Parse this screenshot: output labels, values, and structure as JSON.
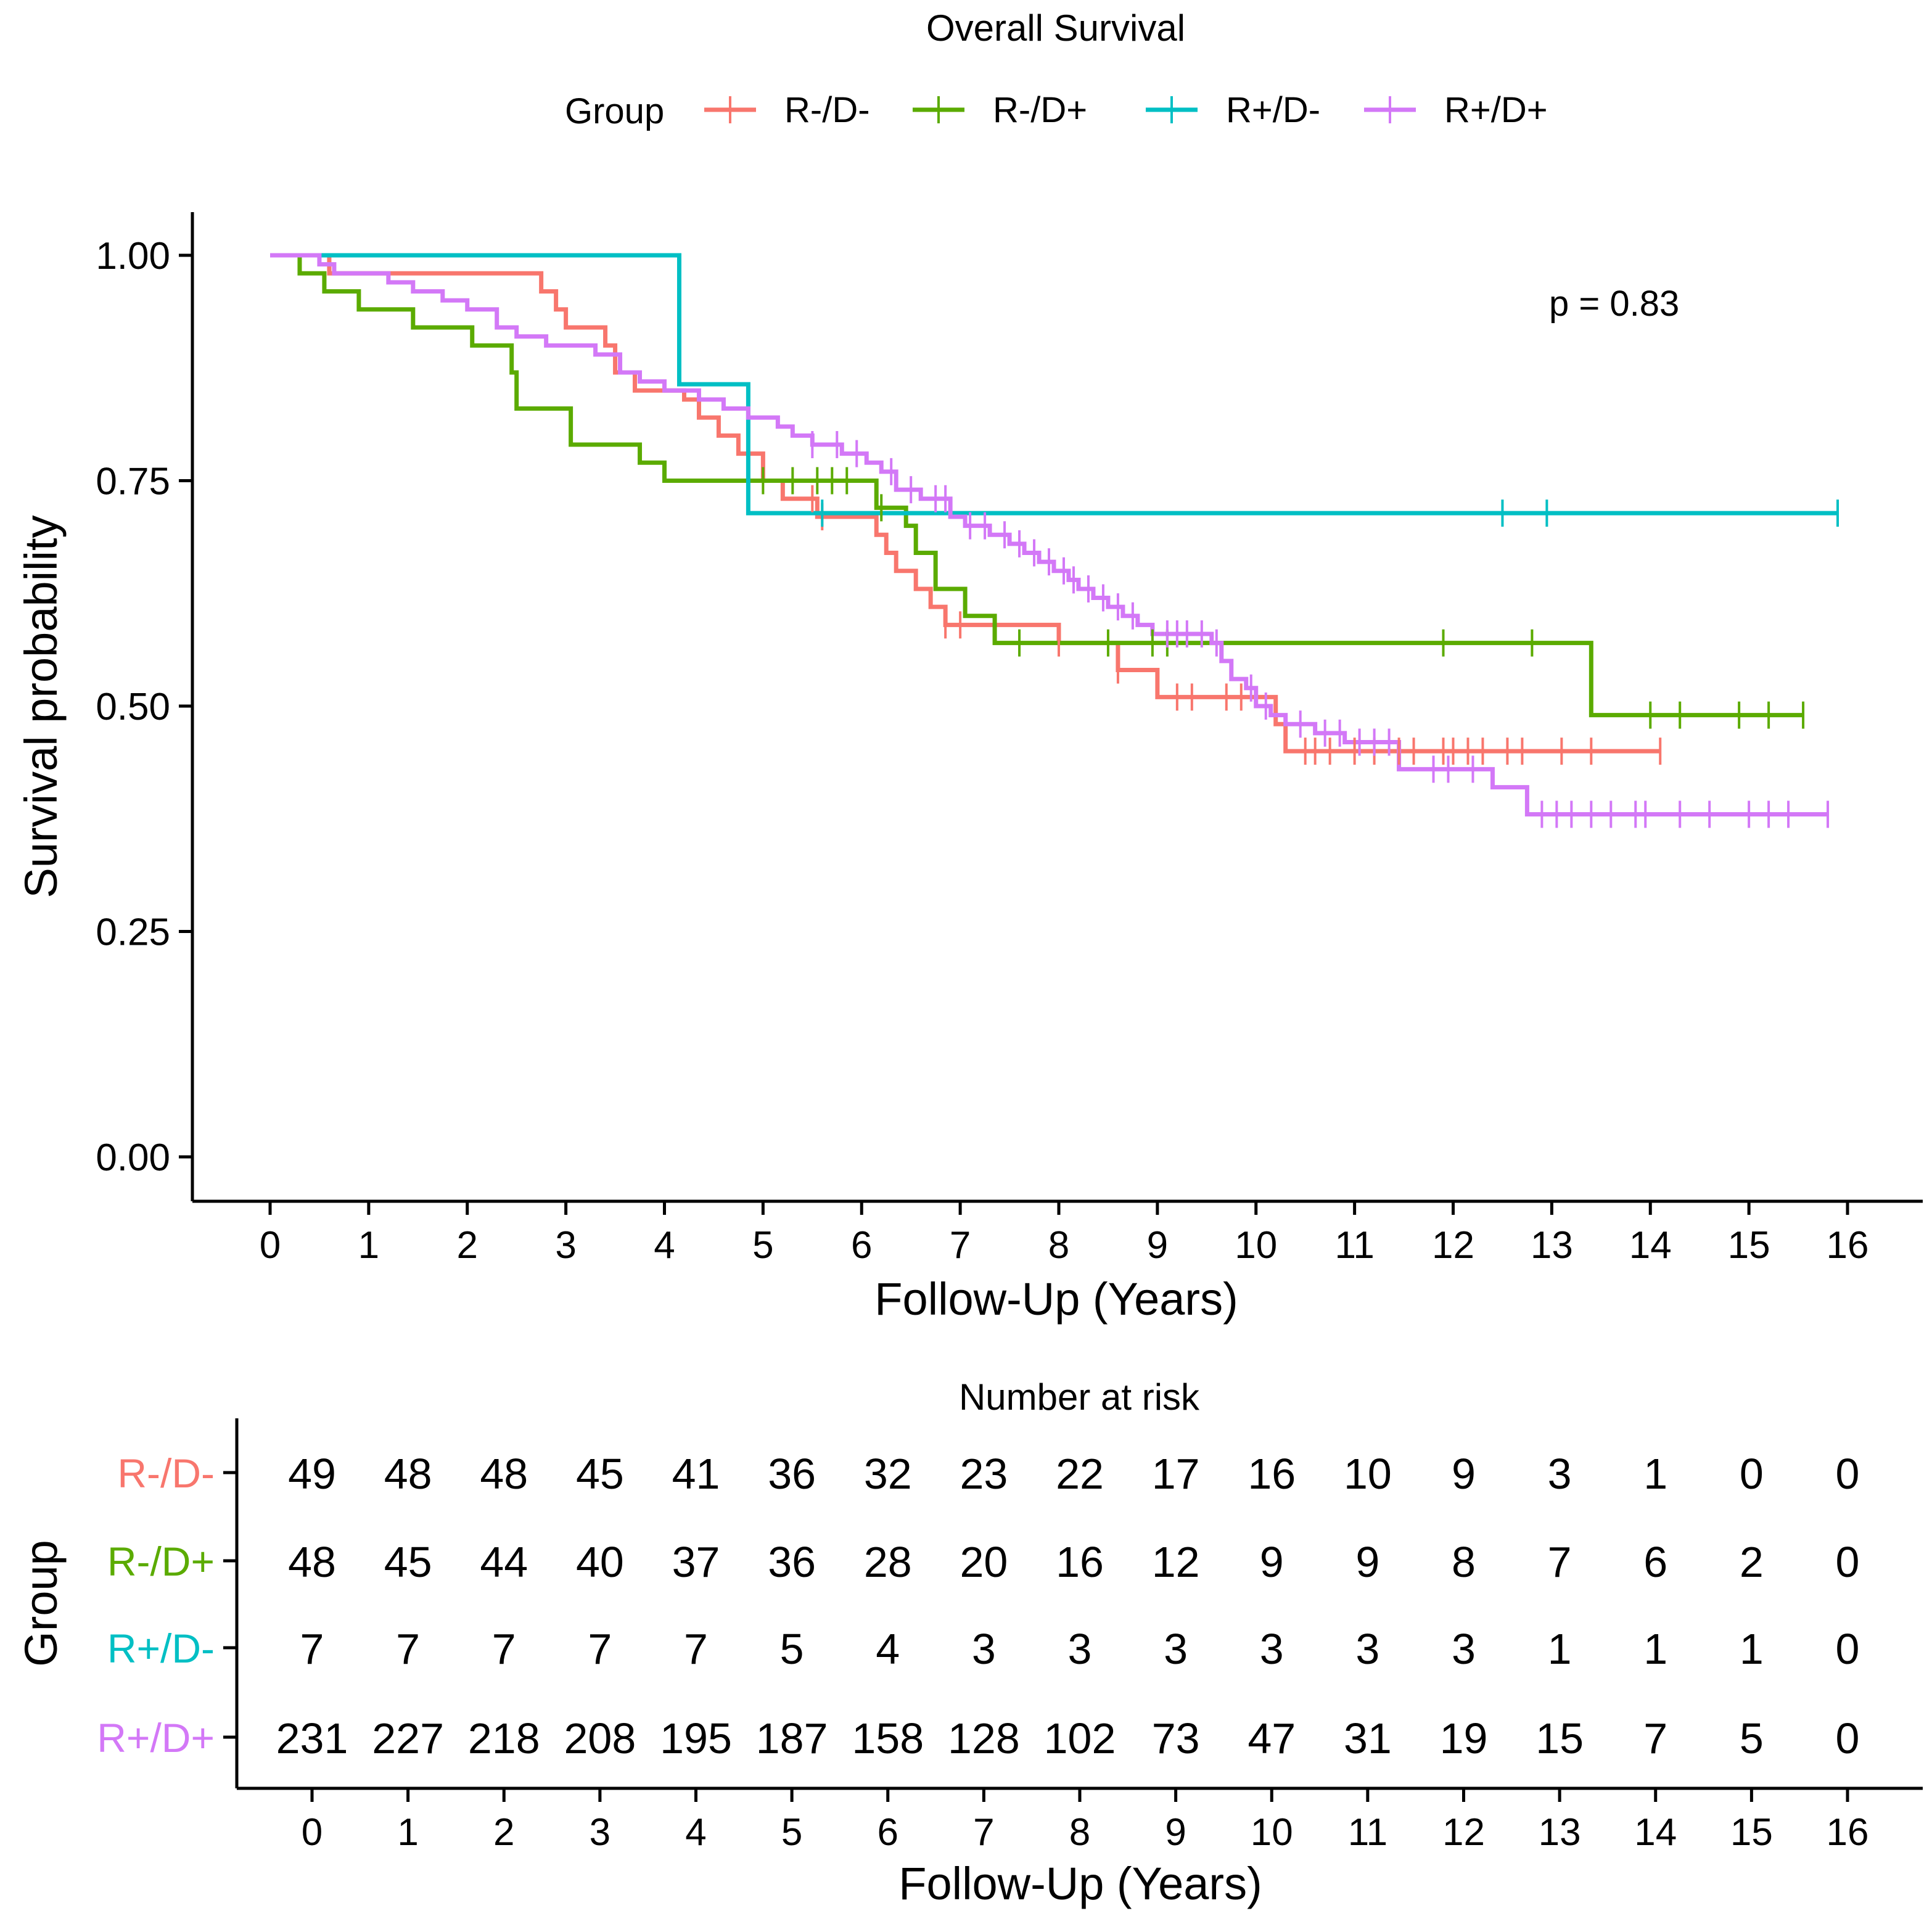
{
  "chart_data": {
    "type": "line",
    "title": "Overall Survival",
    "legend": {
      "title": "Group",
      "placement": "top-center",
      "entries": [
        "R-/D-",
        "R-/D+",
        "R+/D-",
        "R+/D+"
      ]
    },
    "xlabel": "Follow-Up (Years)",
    "ylabel": "Survival probability",
    "xlim": [
      0,
      16
    ],
    "ylim": [
      0,
      1
    ],
    "x_ticks": [
      "0",
      "1",
      "2",
      "3",
      "4",
      "5",
      "6",
      "7",
      "8",
      "9",
      "10",
      "11",
      "12",
      "13",
      "14",
      "15",
      "16"
    ],
    "y_ticks": [
      "0.00",
      "0.25",
      "0.50",
      "0.75",
      "1.00"
    ],
    "annotation": "p = 0.83",
    "series": [
      {
        "name": "R-/D-",
        "color": "#f8766d",
        "steps": [
          [
            0,
            1.0
          ],
          [
            0.6,
            0.98
          ],
          [
            2.75,
            0.96
          ],
          [
            2.9,
            0.94
          ],
          [
            3.0,
            0.92
          ],
          [
            3.4,
            0.9
          ],
          [
            3.5,
            0.87
          ],
          [
            3.7,
            0.85
          ],
          [
            4.2,
            0.84
          ],
          [
            4.35,
            0.82
          ],
          [
            4.55,
            0.8
          ],
          [
            4.75,
            0.78
          ],
          [
            5.0,
            0.75
          ],
          [
            5.2,
            0.73
          ],
          [
            5.55,
            0.71
          ],
          [
            6.15,
            0.69
          ],
          [
            6.25,
            0.67
          ],
          [
            6.35,
            0.65
          ],
          [
            6.55,
            0.63
          ],
          [
            6.7,
            0.61
          ],
          [
            6.85,
            0.59
          ],
          [
            8.0,
            0.57
          ],
          [
            8.6,
            0.54
          ],
          [
            9.0,
            0.51
          ],
          [
            10.2,
            0.48
          ],
          [
            10.3,
            0.45
          ]
        ],
        "end": 14.1,
        "censor": [
          5.5,
          5.6,
          6.85,
          7.0,
          8.0,
          8.6,
          9.2,
          9.35,
          9.7,
          9.85,
          10.5,
          10.6,
          10.75,
          11.0,
          11.2,
          11.45,
          11.6,
          11.9,
          12.0,
          12.15,
          12.3,
          12.55,
          12.7,
          13.1,
          13.4,
          14.1
        ]
      },
      {
        "name": "R-/D+",
        "color": "#5bab00",
        "steps": [
          [
            0,
            1.0
          ],
          [
            0.3,
            0.98
          ],
          [
            0.55,
            0.96
          ],
          [
            0.9,
            0.94
          ],
          [
            1.45,
            0.92
          ],
          [
            2.05,
            0.9
          ],
          [
            2.45,
            0.87
          ],
          [
            2.5,
            0.83
          ],
          [
            3.05,
            0.79
          ],
          [
            3.75,
            0.77
          ],
          [
            4.0,
            0.75
          ],
          [
            6.15,
            0.72
          ],
          [
            6.45,
            0.7
          ],
          [
            6.55,
            0.67
          ],
          [
            6.75,
            0.63
          ],
          [
            7.05,
            0.6
          ],
          [
            7.35,
            0.57
          ],
          [
            13.4,
            0.49
          ]
        ],
        "end": 15.55,
        "censor": [
          5.0,
          5.3,
          5.55,
          5.7,
          5.85,
          6.2,
          7.6,
          8.5,
          8.95,
          9.1,
          11.9,
          12.8,
          14.0,
          14.3,
          14.9,
          15.2,
          15.55
        ]
      },
      {
        "name": "R+/D-",
        "color": "#00bfc4",
        "steps": [
          [
            0,
            1.0
          ],
          [
            4.15,
            0.857
          ],
          [
            4.85,
            0.714
          ]
        ],
        "end": 15.9,
        "censor": [
          5.6,
          12.5,
          12.95,
          15.9
        ]
      },
      {
        "name": "R+/D+",
        "color": "#d378f7",
        "steps": [
          [
            0,
            1.0
          ],
          [
            0.5,
            0.99
          ],
          [
            0.65,
            0.98
          ],
          [
            1.2,
            0.97
          ],
          [
            1.45,
            0.96
          ],
          [
            1.75,
            0.95
          ],
          [
            2.0,
            0.94
          ],
          [
            2.3,
            0.92
          ],
          [
            2.5,
            0.91
          ],
          [
            2.8,
            0.9
          ],
          [
            3.3,
            0.89
          ],
          [
            3.55,
            0.87
          ],
          [
            3.75,
            0.86
          ],
          [
            4.0,
            0.85
          ],
          [
            4.35,
            0.84
          ],
          [
            4.6,
            0.83
          ],
          [
            4.85,
            0.82
          ],
          [
            5.15,
            0.81
          ],
          [
            5.3,
            0.8
          ],
          [
            5.5,
            0.79
          ],
          [
            5.8,
            0.78
          ],
          [
            6.05,
            0.77
          ],
          [
            6.2,
            0.76
          ],
          [
            6.35,
            0.74
          ],
          [
            6.6,
            0.73
          ],
          [
            6.9,
            0.71
          ],
          [
            7.05,
            0.7
          ],
          [
            7.3,
            0.69
          ],
          [
            7.5,
            0.68
          ],
          [
            7.65,
            0.67
          ],
          [
            7.8,
            0.66
          ],
          [
            7.95,
            0.65
          ],
          [
            8.1,
            0.64
          ],
          [
            8.2,
            0.63
          ],
          [
            8.35,
            0.62
          ],
          [
            8.5,
            0.61
          ],
          [
            8.65,
            0.6
          ],
          [
            8.8,
            0.59
          ],
          [
            8.95,
            0.58
          ],
          [
            9.55,
            0.57
          ],
          [
            9.65,
            0.55
          ],
          [
            9.75,
            0.53
          ],
          [
            9.9,
            0.52
          ],
          [
            10.0,
            0.5
          ],
          [
            10.15,
            0.49
          ],
          [
            10.3,
            0.48
          ],
          [
            10.6,
            0.47
          ],
          [
            10.9,
            0.46
          ],
          [
            11.45,
            0.43
          ],
          [
            12.4,
            0.41
          ],
          [
            12.75,
            0.38
          ]
        ],
        "end": 15.8,
        "censor": [
          5.5,
          5.75,
          5.95,
          6.3,
          6.5,
          6.75,
          6.85,
          7.1,
          7.25,
          7.45,
          7.6,
          7.75,
          7.9,
          8.05,
          8.15,
          8.3,
          8.45,
          8.6,
          8.75,
          9.1,
          9.2,
          9.3,
          9.45,
          9.6,
          9.95,
          10.1,
          10.45,
          10.7,
          10.85,
          11.05,
          11.2,
          11.35,
          11.8,
          11.95,
          12.2,
          12.9,
          13.05,
          13.2,
          13.4,
          13.6,
          13.85,
          13.95,
          14.3,
          14.6,
          15.0,
          15.2,
          15.4,
          15.8
        ]
      }
    ],
    "risk_table": {
      "title": "Number at risk",
      "ylabel": "Group",
      "xlabel": "Follow-Up (Years)",
      "x_ticks": [
        "0",
        "1",
        "2",
        "3",
        "4",
        "5",
        "6",
        "7",
        "8",
        "9",
        "10",
        "11",
        "12",
        "13",
        "14",
        "15",
        "16"
      ],
      "rows": [
        {
          "name": "R-/D-",
          "color": "#f8766d",
          "values": [
            "49",
            "48",
            "48",
            "45",
            "41",
            "36",
            "32",
            "23",
            "22",
            "17",
            "16",
            "10",
            "9",
            "3",
            "1",
            "0",
            "0"
          ]
        },
        {
          "name": "R-/D+",
          "color": "#5bab00",
          "values": [
            "48",
            "45",
            "44",
            "40",
            "37",
            "36",
            "28",
            "20",
            "16",
            "12",
            "9",
            "9",
            "8",
            "7",
            "6",
            "2",
            "0"
          ]
        },
        {
          "name": "R+/D-",
          "color": "#00bfc4",
          "values": [
            "7",
            "7",
            "7",
            "7",
            "7",
            "5",
            "4",
            "3",
            "3",
            "3",
            "3",
            "3",
            "3",
            "1",
            "1",
            "1",
            "0"
          ]
        },
        {
          "name": "R+/D+",
          "color": "#d378f7",
          "values": [
            "231",
            "227",
            "218",
            "208",
            "195",
            "187",
            "158",
            "128",
            "102",
            "73",
            "47",
            "31",
            "19",
            "15",
            "7",
            "5",
            "0"
          ]
        }
      ]
    }
  }
}
